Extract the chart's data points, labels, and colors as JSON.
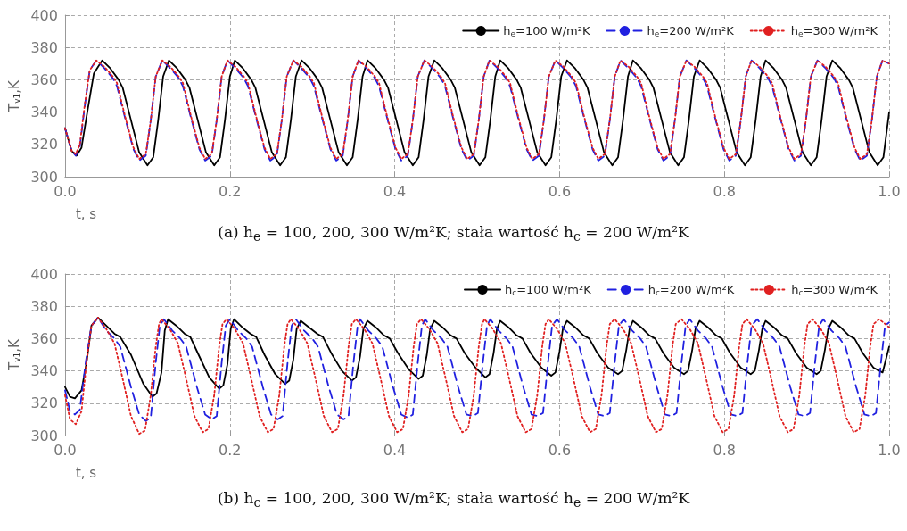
{
  "chart_data": [
    {
      "type": "line",
      "xlabel": "t, s",
      "ylabel": "T$_{v1}$,K",
      "annotations": [
        "(a) h$_{e}$ = 100, 200, 300 W/m²K; stała wartość h$_{c}$ = 200 W/m²K"
      ],
      "xlim": [
        0,
        1
      ],
      "xticks": [
        {
          "value": 0,
          "label": "0.0"
        },
        {
          "value": 0.2,
          "label": "0.2"
        },
        {
          "value": 0.4,
          "label": "0.4"
        },
        {
          "value": 0.6,
          "label": "0.6"
        },
        {
          "value": 0.8,
          "label": "0.8"
        },
        {
          "value": 1,
          "label": "1.0"
        }
      ],
      "ylim": [
        300,
        400
      ],
      "yticks": [
        300,
        320,
        340,
        360,
        380,
        400
      ],
      "grid": true,
      "legend": "top right",
      "marker": "none",
      "series": [
        {
          "name": "h$_{e}$=100 W/m²K",
          "color": "#000000",
          "line_style": "solid",
          "x": [
            0,
            0.008,
            0.014,
            0.02,
            0.027,
            0.035,
            0.045,
            0.055,
            0.065,
            0.07,
            0.08,
            0.09,
            0.1,
            0.107,
            0.113,
            0.119,
            0.126,
            0.136,
            0.146,
            0.151,
            0.161,
            0.171,
            0.181,
            0.188,
            0.194,
            0.2,
            0.206,
            0.216,
            0.226,
            0.231,
            0.241,
            0.251,
            0.261,
            0.268,
            0.274,
            0.28,
            0.287,
            0.297,
            0.307,
            0.312,
            0.322,
            0.332,
            0.342,
            0.349,
            0.355,
            0.361,
            0.367,
            0.377,
            0.387,
            0.392,
            0.402,
            0.412,
            0.422,
            0.429,
            0.435,
            0.441,
            0.448,
            0.458,
            0.468,
            0.473,
            0.483,
            0.493,
            0.503,
            0.51,
            0.516,
            0.522,
            0.528,
            0.538,
            0.548,
            0.553,
            0.563,
            0.573,
            0.583,
            0.59,
            0.596,
            0.602,
            0.609,
            0.619,
            0.629,
            0.634,
            0.644,
            0.654,
            0.664,
            0.671,
            0.677,
            0.683,
            0.689,
            0.699,
            0.709,
            0.714,
            0.724,
            0.734,
            0.744,
            0.751,
            0.757,
            0.763,
            0.77,
            0.78,
            0.79,
            0.795,
            0.805,
            0.815,
            0.825,
            0.832,
            0.838,
            0.844,
            0.85,
            0.86,
            0.87,
            0.875,
            0.885,
            0.895,
            0.905,
            0.912,
            0.918,
            0.924,
            0.931,
            0.941,
            0.951,
            0.956,
            0.966,
            0.976,
            0.986,
            0.993,
            1.0
          ],
          "values": [
            330,
            316,
            313,
            318,
            340,
            364,
            372,
            367,
            360,
            355,
            335,
            315,
            307,
            312,
            335,
            362,
            372,
            367,
            360,
            355,
            335,
            315,
            307,
            312,
            335,
            362,
            372,
            367,
            360,
            355,
            335,
            315,
            307,
            312,
            335,
            362,
            372,
            367,
            360,
            355,
            335,
            315,
            307,
            312,
            335,
            362,
            372,
            367,
            360,
            355,
            335,
            315,
            307,
            312,
            335,
            362,
            372,
            367,
            360,
            355,
            335,
            315,
            307,
            312,
            335,
            362,
            372,
            367,
            360,
            355,
            335,
            315,
            307,
            312,
            335,
            362,
            372,
            367,
            360,
            355,
            335,
            315,
            307,
            312,
            335,
            362,
            372,
            367,
            360,
            355,
            335,
            315,
            307,
            312,
            335,
            362,
            372,
            367,
            360,
            355,
            335,
            315,
            307,
            312,
            335,
            362,
            372,
            367,
            360,
            355,
            335,
            315,
            307,
            312,
            335,
            362,
            372,
            367,
            360,
            355,
            335,
            315,
            307,
            312,
            340
          ]
        },
        {
          "name": "h$_{e}$=200 W/m²K",
          "color": "#2020e0",
          "line_style": "dashed",
          "x": [
            0,
            0.008,
            0.013,
            0.018,
            0.024,
            0.03,
            0.038,
            0.048,
            0.058,
            0.063,
            0.073,
            0.083,
            0.09,
            0.098,
            0.104,
            0.11,
            0.118,
            0.128,
            0.138,
            0.143,
            0.153,
            0.163,
            0.17,
            0.178,
            0.184,
            0.19,
            0.197,
            0.207,
            0.217,
            0.222,
            0.232,
            0.242,
            0.249,
            0.257,
            0.263,
            0.269,
            0.277,
            0.287,
            0.297,
            0.302,
            0.312,
            0.322,
            0.329,
            0.337,
            0.343,
            0.349,
            0.356,
            0.366,
            0.376,
            0.381,
            0.391,
            0.401,
            0.408,
            0.416,
            0.422,
            0.428,
            0.436,
            0.446,
            0.456,
            0.461,
            0.471,
            0.481,
            0.488,
            0.496,
            0.502,
            0.508,
            0.515,
            0.525,
            0.535,
            0.54,
            0.55,
            0.56,
            0.567,
            0.575,
            0.581,
            0.587,
            0.595,
            0.605,
            0.615,
            0.62,
            0.63,
            0.64,
            0.647,
            0.655,
            0.661,
            0.667,
            0.674,
            0.684,
            0.694,
            0.699,
            0.709,
            0.719,
            0.726,
            0.734,
            0.74,
            0.746,
            0.754,
            0.764,
            0.774,
            0.779,
            0.789,
            0.799,
            0.806,
            0.814,
            0.82,
            0.826,
            0.833,
            0.843,
            0.853,
            0.858,
            0.868,
            0.878,
            0.885,
            0.893,
            0.899,
            0.905,
            0.913,
            0.923,
            0.933,
            0.938,
            0.948,
            0.958,
            0.965,
            0.973,
            0.979,
            0.985,
            0.992,
            1.0
          ],
          "values": [
            330,
            316,
            313,
            319,
            344,
            366,
            372,
            367,
            361,
            356,
            336,
            317,
            310,
            313,
            335,
            362,
            372,
            367,
            361,
            356,
            336,
            317,
            310,
            313,
            335,
            362,
            372,
            367,
            361,
            356,
            336,
            317,
            310,
            313,
            335,
            362,
            372,
            367,
            361,
            356,
            336,
            317,
            310,
            313,
            335,
            362,
            372,
            367,
            361,
            356,
            336,
            317,
            310,
            313,
            335,
            362,
            372,
            367,
            361,
            356,
            336,
            317,
            310,
            313,
            335,
            362,
            372,
            367,
            361,
            356,
            336,
            317,
            310,
            313,
            335,
            362,
            372,
            367,
            361,
            356,
            336,
            317,
            310,
            313,
            335,
            362,
            372,
            367,
            361,
            356,
            336,
            317,
            310,
            313,
            335,
            362,
            372,
            367,
            361,
            356,
            336,
            317,
            310,
            313,
            335,
            362,
            372,
            367,
            361,
            356,
            336,
            317,
            310,
            313,
            335,
            362,
            372,
            367,
            361,
            356,
            336,
            317,
            310,
            313,
            335,
            362,
            372,
            370
          ]
        },
        {
          "name": "h$_{e}$=300 W/m²K",
          "color": "#e02020",
          "line_style": "dotted",
          "x": [
            0,
            0.008,
            0.013,
            0.018,
            0.024,
            0.03,
            0.038,
            0.048,
            0.058,
            0.063,
            0.073,
            0.083,
            0.09,
            0.098,
            0.104,
            0.11,
            0.118,
            0.128,
            0.138,
            0.143,
            0.153,
            0.163,
            0.17,
            0.178,
            0.184,
            0.19,
            0.197,
            0.207,
            0.217,
            0.222,
            0.232,
            0.242,
            0.249,
            0.257,
            0.263,
            0.269,
            0.277,
            0.287,
            0.297,
            0.302,
            0.312,
            0.322,
            0.329,
            0.337,
            0.343,
            0.349,
            0.356,
            0.366,
            0.376,
            0.381,
            0.391,
            0.401,
            0.408,
            0.416,
            0.422,
            0.428,
            0.436,
            0.446,
            0.456,
            0.461,
            0.471,
            0.481,
            0.488,
            0.496,
            0.502,
            0.508,
            0.515,
            0.525,
            0.535,
            0.54,
            0.55,
            0.56,
            0.567,
            0.575,
            0.581,
            0.587,
            0.595,
            0.605,
            0.615,
            0.62,
            0.63,
            0.64,
            0.647,
            0.655,
            0.661,
            0.667,
            0.674,
            0.684,
            0.694,
            0.699,
            0.709,
            0.719,
            0.726,
            0.734,
            0.74,
            0.746,
            0.754,
            0.764,
            0.774,
            0.779,
            0.789,
            0.799,
            0.806,
            0.814,
            0.82,
            0.826,
            0.833,
            0.843,
            0.853,
            0.858,
            0.868,
            0.878,
            0.885,
            0.893,
            0.899,
            0.905,
            0.913,
            0.923,
            0.933,
            0.938,
            0.948,
            0.958,
            0.965,
            0.973,
            0.979,
            0.985,
            0.992,
            1.0
          ],
          "values": [
            330,
            316,
            314,
            320,
            345,
            366,
            372,
            368,
            362,
            358,
            337,
            318,
            311,
            314,
            335,
            362,
            372,
            368,
            362,
            358,
            337,
            318,
            311,
            314,
            335,
            362,
            372,
            368,
            362,
            358,
            337,
            318,
            311,
            314,
            335,
            362,
            372,
            368,
            362,
            358,
            337,
            318,
            311,
            314,
            335,
            362,
            372,
            368,
            362,
            358,
            337,
            318,
            311,
            314,
            335,
            362,
            372,
            368,
            362,
            358,
            337,
            318,
            311,
            314,
            335,
            362,
            372,
            368,
            362,
            358,
            337,
            318,
            311,
            314,
            335,
            362,
            372,
            368,
            362,
            358,
            337,
            318,
            311,
            314,
            335,
            362,
            372,
            368,
            362,
            358,
            337,
            318,
            311,
            314,
            335,
            362,
            372,
            368,
            362,
            358,
            337,
            318,
            311,
            314,
            335,
            362,
            372,
            368,
            362,
            358,
            337,
            318,
            311,
            314,
            335,
            362,
            372,
            368,
            362,
            358,
            337,
            318,
            311,
            314,
            335,
            362,
            372,
            370
          ]
        }
      ]
    },
    {
      "type": "line",
      "xlabel": "t, s",
      "ylabel": "T$_{v1}$,K",
      "annotations": [
        "(b) h$_{c}$ = 100, 200, 300 W/m²K; stała wartość h$_{e}$ = 200 W/m²K"
      ],
      "xlim": [
        0,
        1
      ],
      "xticks": [
        {
          "value": 0,
          "label": "0.0"
        },
        {
          "value": 0.2,
          "label": "0.2"
        },
        {
          "value": 0.4,
          "label": "0.4"
        },
        {
          "value": 0.6,
          "label": "0.6"
        },
        {
          "value": 0.8,
          "label": "0.8"
        },
        {
          "value": 1,
          "label": "1.0"
        }
      ],
      "ylim": [
        300,
        400
      ],
      "yticks": [
        300,
        320,
        340,
        360,
        380,
        400
      ],
      "grid": true,
      "legend": "top right",
      "marker": "none",
      "series": [
        {
          "name": "h$_{c}$=100 W/m²K",
          "color": "#000000",
          "line_style": "solid",
          "x": [
            0,
            0.006,
            0.012,
            0.02,
            0.026,
            0.032,
            0.04,
            0.05,
            0.06,
            0.067,
            0.08,
            0.095,
            0.106,
            0.111,
            0.117,
            0.121,
            0.125,
            0.135,
            0.145,
            0.152,
            0.162,
            0.175,
            0.187,
            0.192,
            0.197,
            0.201,
            0.205,
            0.215,
            0.225,
            0.232,
            0.242,
            0.255,
            0.267,
            0.272,
            0.277,
            0.281,
            0.286,
            0.296,
            0.306,
            0.313,
            0.323,
            0.336,
            0.348,
            0.353,
            0.358,
            0.362,
            0.367,
            0.377,
            0.387,
            0.394,
            0.404,
            0.417,
            0.429,
            0.434,
            0.439,
            0.443,
            0.448,
            0.458,
            0.468,
            0.475,
            0.485,
            0.498,
            0.51,
            0.515,
            0.52,
            0.524,
            0.528,
            0.538,
            0.548,
            0.555,
            0.565,
            0.578,
            0.59,
            0.595,
            0.6,
            0.604,
            0.609,
            0.619,
            0.629,
            0.636,
            0.646,
            0.659,
            0.671,
            0.676,
            0.681,
            0.685,
            0.689,
            0.699,
            0.709,
            0.716,
            0.726,
            0.739,
            0.751,
            0.756,
            0.761,
            0.765,
            0.77,
            0.78,
            0.79,
            0.797,
            0.807,
            0.82,
            0.832,
            0.837,
            0.842,
            0.846,
            0.85,
            0.86,
            0.87,
            0.877,
            0.887,
            0.9,
            0.912,
            0.917,
            0.922,
            0.926,
            0.931,
            0.941,
            0.951,
            0.958,
            0.968,
            0.981,
            0.992,
            1.0
          ],
          "values": [
            330,
            324,
            323,
            328,
            345,
            368,
            373,
            368,
            363,
            361,
            350,
            332,
            324,
            326,
            339,
            365,
            372,
            368,
            363,
            361,
            350,
            336,
            329,
            331,
            344,
            366,
            372,
            367,
            363,
            361,
            350,
            338,
            332,
            334,
            347,
            366,
            371,
            367,
            363,
            361,
            351,
            340,
            334,
            336,
            349,
            366,
            371,
            367,
            362,
            360,
            351,
            341,
            335,
            337,
            350,
            366,
            371,
            367,
            362,
            360,
            351,
            342,
            336,
            338,
            351,
            366,
            371,
            367,
            362,
            360,
            351,
            342,
            337,
            339,
            352,
            366,
            371,
            367,
            362,
            360,
            351,
            342,
            338,
            340,
            353,
            366,
            371,
            367,
            362,
            360,
            351,
            342,
            338,
            340,
            353,
            366,
            371,
            367,
            362,
            360,
            351,
            342,
            338,
            340,
            353,
            366,
            371,
            367,
            362,
            360,
            351,
            342,
            338,
            340,
            353,
            366,
            371,
            367,
            362,
            360,
            351,
            342,
            339,
            355
          ]
        },
        {
          "name": "h$_{c}$=200 W/m²K",
          "color": "#2020e0",
          "line_style": "dashed",
          "x": [
            0,
            0.006,
            0.012,
            0.018,
            0.025,
            0.032,
            0.04,
            0.05,
            0.06,
            0.067,
            0.08,
            0.09,
            0.098,
            0.104,
            0.11,
            0.115,
            0.12,
            0.13,
            0.14,
            0.147,
            0.16,
            0.17,
            0.178,
            0.184,
            0.19,
            0.195,
            0.2,
            0.21,
            0.22,
            0.227,
            0.24,
            0.25,
            0.258,
            0.264,
            0.27,
            0.275,
            0.28,
            0.29,
            0.3,
            0.307,
            0.32,
            0.33,
            0.338,
            0.344,
            0.35,
            0.355,
            0.358,
            0.368,
            0.378,
            0.385,
            0.398,
            0.408,
            0.416,
            0.422,
            0.428,
            0.433,
            0.437,
            0.447,
            0.457,
            0.464,
            0.477,
            0.487,
            0.495,
            0.501,
            0.507,
            0.512,
            0.516,
            0.526,
            0.536,
            0.543,
            0.556,
            0.566,
            0.574,
            0.58,
            0.586,
            0.591,
            0.597,
            0.607,
            0.617,
            0.624,
            0.637,
            0.647,
            0.655,
            0.661,
            0.667,
            0.672,
            0.678,
            0.688,
            0.698,
            0.705,
            0.718,
            0.728,
            0.736,
            0.742,
            0.748,
            0.753,
            0.758,
            0.768,
            0.778,
            0.785,
            0.798,
            0.808,
            0.816,
            0.822,
            0.828,
            0.833,
            0.84,
            0.85,
            0.86,
            0.867,
            0.88,
            0.89,
            0.898,
            0.904,
            0.91,
            0.915,
            0.92,
            0.93,
            0.94,
            0.947,
            0.96,
            0.97,
            0.978,
            0.984,
            0.99,
            0.995,
            1.0
          ],
          "values": [
            328,
            315,
            313,
            316,
            345,
            368,
            373,
            365,
            360,
            355,
            330,
            313,
            309,
            311,
            345,
            368,
            372,
            365,
            360,
            355,
            330,
            313,
            310,
            312,
            345,
            368,
            372,
            365,
            360,
            355,
            330,
            313,
            310,
            312,
            345,
            368,
            372,
            365,
            360,
            355,
            330,
            313,
            310,
            312,
            345,
            368,
            372,
            365,
            360,
            355,
            330,
            313,
            311,
            313,
            345,
            368,
            372,
            365,
            360,
            355,
            330,
            313,
            312,
            314,
            345,
            368,
            372,
            365,
            360,
            355,
            330,
            313,
            312,
            314,
            345,
            368,
            372,
            365,
            360,
            355,
            330,
            313,
            312,
            314,
            345,
            368,
            372,
            365,
            360,
            355,
            330,
            313,
            312,
            314,
            345,
            368,
            372,
            365,
            360,
            355,
            330,
            313,
            312,
            314,
            345,
            368,
            372,
            365,
            360,
            355,
            330,
            313,
            312,
            314,
            345,
            368,
            372,
            365,
            360,
            355,
            330,
            313,
            312,
            314,
            345,
            368,
            370
          ]
        },
        {
          "name": "h$_{c}$=300 W/m²K",
          "color": "#e02020",
          "line_style": "dotted",
          "x": [
            0,
            0.006,
            0.013,
            0.02,
            0.026,
            0.032,
            0.04,
            0.05,
            0.06,
            0.07,
            0.08,
            0.09,
            0.097,
            0.104,
            0.11,
            0.114,
            0.117,
            0.127,
            0.137,
            0.147,
            0.157,
            0.167,
            0.174,
            0.181,
            0.187,
            0.191,
            0.196,
            0.206,
            0.216,
            0.226,
            0.236,
            0.246,
            0.253,
            0.26,
            0.266,
            0.27,
            0.274,
            0.284,
            0.294,
            0.304,
            0.314,
            0.324,
            0.331,
            0.338,
            0.344,
            0.348,
            0.353,
            0.363,
            0.373,
            0.383,
            0.393,
            0.403,
            0.41,
            0.417,
            0.423,
            0.427,
            0.432,
            0.442,
            0.452,
            0.462,
            0.472,
            0.482,
            0.489,
            0.496,
            0.502,
            0.506,
            0.509,
            0.519,
            0.529,
            0.539,
            0.549,
            0.559,
            0.566,
            0.573,
            0.579,
            0.583,
            0.587,
            0.597,
            0.607,
            0.617,
            0.627,
            0.637,
            0.644,
            0.651,
            0.657,
            0.661,
            0.667,
            0.677,
            0.687,
            0.697,
            0.707,
            0.717,
            0.724,
            0.731,
            0.737,
            0.741,
            0.748,
            0.758,
            0.768,
            0.778,
            0.788,
            0.798,
            0.805,
            0.812,
            0.818,
            0.822,
            0.827,
            0.837,
            0.847,
            0.857,
            0.867,
            0.877,
            0.884,
            0.891,
            0.897,
            0.901,
            0.907,
            0.917,
            0.927,
            0.937,
            0.947,
            0.957,
            0.964,
            0.971,
            0.977,
            0.981,
            0.988,
            1.0
          ],
          "values": [
            325,
            310,
            307,
            315,
            345,
            368,
            373,
            366,
            357,
            335,
            312,
            301,
            303,
            325,
            355,
            369,
            372,
            366,
            357,
            335,
            312,
            302,
            304,
            325,
            355,
            369,
            372,
            366,
            357,
            335,
            312,
            302,
            304,
            325,
            355,
            369,
            372,
            366,
            357,
            335,
            312,
            302,
            304,
            325,
            355,
            369,
            372,
            366,
            357,
            335,
            312,
            302,
            304,
            325,
            355,
            369,
            372,
            366,
            357,
            335,
            312,
            302,
            304,
            325,
            355,
            369,
            372,
            366,
            357,
            335,
            312,
            302,
            304,
            325,
            355,
            369,
            372,
            366,
            357,
            335,
            312,
            302,
            304,
            325,
            355,
            369,
            372,
            366,
            357,
            335,
            312,
            302,
            304,
            325,
            355,
            369,
            372,
            366,
            357,
            335,
            312,
            302,
            304,
            325,
            355,
            369,
            372,
            366,
            357,
            335,
            312,
            302,
            304,
            325,
            355,
            369,
            372,
            366,
            357,
            335,
            312,
            302,
            304,
            325,
            355,
            369,
            372,
            367
          ]
        }
      ]
    }
  ]
}
